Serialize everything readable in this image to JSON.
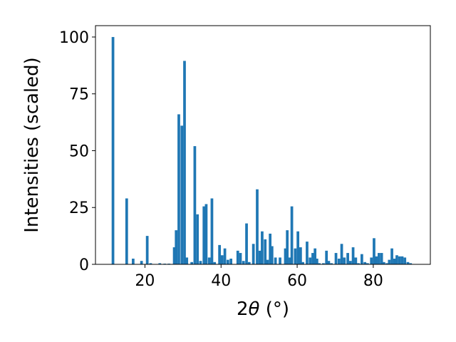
{
  "chart_data": {
    "type": "bar",
    "xlabel": "2θ (°)",
    "xlabel_parts": {
      "base": "2",
      "theta": "θ",
      "unit": " (°)"
    },
    "ylabel": "Intensities (scaled)",
    "xlim": [
      7,
      95
    ],
    "ylim": [
      0,
      105
    ],
    "xticks": [
      20,
      40,
      60,
      80
    ],
    "yticks": [
      0,
      25,
      50,
      75,
      100
    ],
    "bar_color": "#1f77b4",
    "bar_width": 0.7,
    "grid": false,
    "legend": "none",
    "x": [
      11.6,
      15.2,
      16.9,
      19.1,
      20.6,
      21.5,
      23.9,
      25.2,
      26.3,
      27.7,
      28.2,
      28.9,
      29.7,
      30.4,
      31.0,
      32.3,
      33.1,
      33.8,
      34.6,
      35.5,
      36.1,
      36.9,
      37.6,
      38.3,
      39.6,
      40.3,
      41.0,
      41.8,
      42.6,
      44.4,
      45.1,
      45.9,
      46.7,
      47.4,
      48.5,
      49.5,
      50.2,
      50.8,
      51.6,
      52.2,
      52.9,
      53.4,
      54.3,
      55.5,
      56.9,
      57.4,
      58.1,
      58.6,
      59.5,
      60.2,
      60.9,
      61.5,
      62.6,
      63.4,
      64.1,
      64.7,
      65.2,
      65.8,
      66.9,
      67.7,
      68.3,
      69.0,
      70.2,
      71.0,
      71.7,
      72.4,
      73.3,
      74.0,
      74.7,
      75.4,
      76.1,
      77.0,
      77.8,
      78.5,
      79.5,
      80.2,
      80.8,
      81.5,
      82.2,
      82.8,
      83.6,
      84.2,
      84.9,
      85.6,
      86.2,
      86.9,
      87.6,
      88.3,
      89.1,
      89.8
    ]
  },
  "bar_heights": [
    100,
    29,
    2.5,
    1.5,
    12.5,
    0.5,
    0.5,
    0.3,
    0.3,
    7.5,
    15,
    66,
    61,
    89.5,
    3,
    1,
    52,
    22,
    1.5,
    25.5,
    26.5,
    3,
    29,
    1,
    8.5,
    4,
    7,
    2,
    2.5,
    6,
    5,
    1.5,
    18,
    1,
    9,
    33,
    6,
    14.5,
    11,
    2,
    13.5,
    8,
    3,
    3,
    7,
    15,
    3,
    25.5,
    7,
    14.5,
    7.5,
    1,
    10,
    3,
    5,
    7,
    2.5,
    0.5,
    0.5,
    6,
    1.5,
    0.5,
    5,
    2.5,
    9,
    3,
    5,
    1.5,
    7.5,
    3,
    0.5,
    4.5,
    1,
    0.5,
    3,
    11.5,
    3.5,
    5,
    5,
    1,
    0.5,
    2,
    7,
    2.5,
    4,
    3.5,
    3.5,
    3,
    1,
    0.5
  ]
}
